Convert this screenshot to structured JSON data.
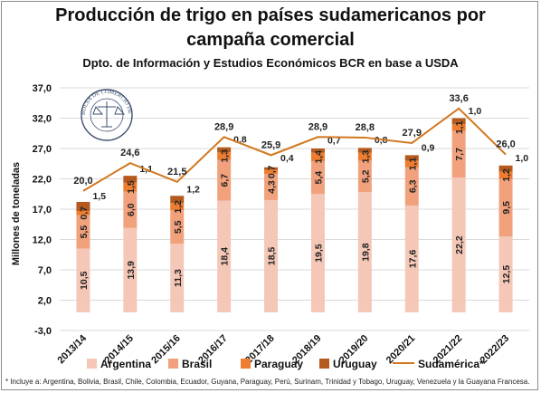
{
  "chart_data": {
    "type": "bar",
    "stacked": true,
    "title": "Producción de trigo en países sudamericanos por campaña comercial",
    "title_line1": "Producción de trigo en países sudamericanos por",
    "title_line2": "campaña comercial",
    "subtitle": "Dpto. de Información y Estudios Económicos BCR en base a USDA",
    "ylabel": "Millones de toneladas",
    "xlabel": "",
    "ylim": [
      -3.0,
      37.0
    ],
    "yticks": [
      "37,0",
      "32,0",
      "27,0",
      "22,0",
      "17,0",
      "12,0",
      "7,0",
      "2,0",
      "-3,0"
    ],
    "categories": [
      "2013/14",
      "2014/15",
      "2015/16",
      "2016/17",
      "2017/18",
      "2018/19",
      "2019/20",
      "2020/21",
      "2021/22",
      "2022/23"
    ],
    "series": [
      {
        "name": "Argentina",
        "color": "#f4c7b7",
        "values": [
          10.5,
          13.9,
          11.3,
          18.4,
          18.5,
          19.5,
          19.8,
          17.6,
          22.2,
          12.5
        ],
        "labels": [
          "10,5",
          "13,9",
          "11,3",
          "18,4",
          "18,5",
          "19,5",
          "19,8",
          "17,6",
          "22,2",
          "12,5"
        ]
      },
      {
        "name": "Brasil",
        "color": "#f1a27d",
        "values": [
          5.5,
          6.0,
          5.5,
          6.7,
          4.3,
          5.4,
          5.2,
          6.3,
          7.7,
          9.5
        ],
        "labels": [
          "5,5",
          "6,0",
          "5,5",
          "6,7",
          "4,3",
          "5,4",
          "5,2",
          "6,3",
          "7,7",
          "9,5"
        ]
      },
      {
        "name": "Paraguay",
        "color": "#ee7d31",
        "values": [
          0.7,
          1.5,
          1.2,
          1.3,
          0.7,
          1.4,
          1.3,
          1.1,
          1.1,
          1.2
        ],
        "labels": [
          "0,7",
          "1,5",
          "1,2",
          "1,3",
          "0,7",
          "1,4",
          "1,3",
          "1,1",
          "1,1",
          "1,2"
        ]
      },
      {
        "name": "Uruguay",
        "color": "#b45a1e",
        "values": [
          1.5,
          1.1,
          1.2,
          0.8,
          0.4,
          0.7,
          0.8,
          0.9,
          1.0,
          1.0
        ],
        "labels": [
          "1,5",
          "1,1",
          "1,2",
          "0,8",
          "0,4",
          "0,7",
          "0,8",
          "0,9",
          "1,0",
          "1,0"
        ]
      }
    ],
    "line": {
      "name": "Sudamérica*",
      "color": "#d2771e",
      "values": [
        20.0,
        24.6,
        21.5,
        28.9,
        25.9,
        28.9,
        28.8,
        27.9,
        33.6,
        26.0
      ],
      "labels": [
        "20,0",
        "24,6",
        "21,5",
        "28,9",
        "25,9",
        "28,9",
        "28,8",
        "27,9",
        "33,6",
        "26,0"
      ]
    },
    "legend_position": "bottom",
    "grid": true
  },
  "footnote": "* Incluye a: Argentina, Bolivia, Brasil, Chile, Colombia, Ecuador, Guyana, Paraguay, Perú, Surinam, Trinidad y Tobago, Uruguay, Venezuela y la Guayana Francesa.",
  "logo_text": "BOLSA DE COMERCIO DE ROSARIO"
}
